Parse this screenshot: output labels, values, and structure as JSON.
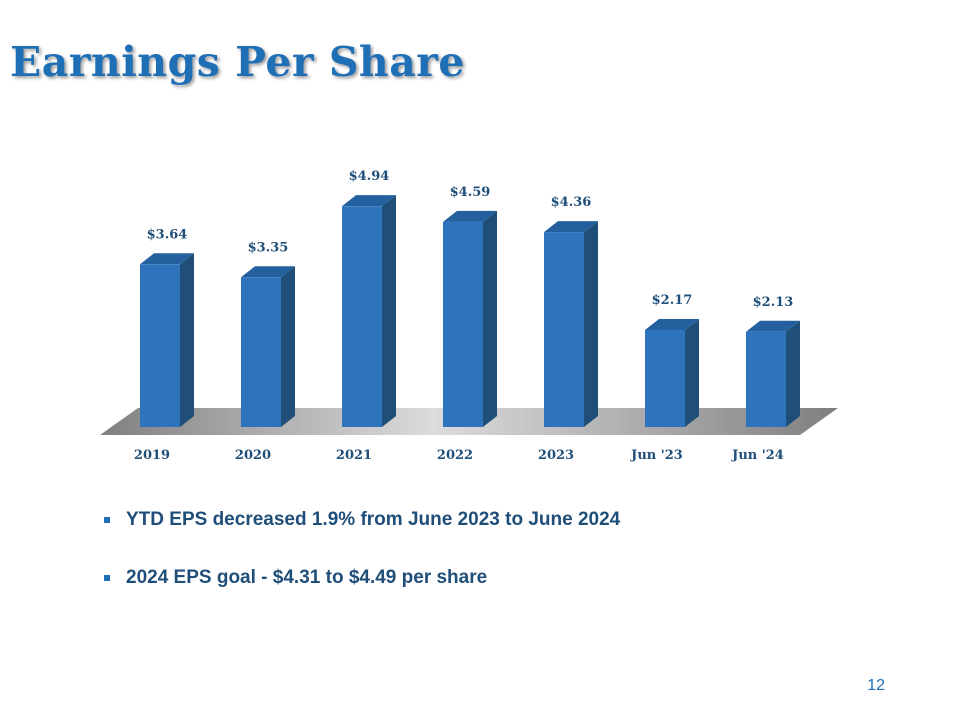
{
  "slide": {
    "title": "Earnings Per Share",
    "page_number": "12"
  },
  "bullets": [
    "YTD EPS decreased 1.9% from June 2023 to June 2024",
    "2024 EPS goal - $4.31 to $4.49 per share"
  ],
  "colors": {
    "bar_front": "#2e74bd",
    "bar_side": "#1f4e79",
    "bar_top": "#24609e",
    "floor": "#a6a6a6",
    "text": "#1f4e79",
    "title": "#1f6fb7"
  },
  "chart_data": {
    "type": "bar",
    "style": "3d",
    "categories": [
      "2019",
      "2020",
      "2021",
      "2022",
      "2023",
      "Jun '23",
      "Jun '24"
    ],
    "values": [
      3.64,
      3.35,
      4.94,
      4.59,
      4.36,
      2.17,
      2.13
    ],
    "data_labels": [
      "$3.64",
      "$3.35",
      "$4.94",
      "$4.59",
      "$4.36",
      "$2.17",
      "$2.13"
    ],
    "ylim": [
      0,
      5
    ],
    "grid": false,
    "legend": "none",
    "title": "",
    "xlabel": "",
    "ylabel": ""
  }
}
